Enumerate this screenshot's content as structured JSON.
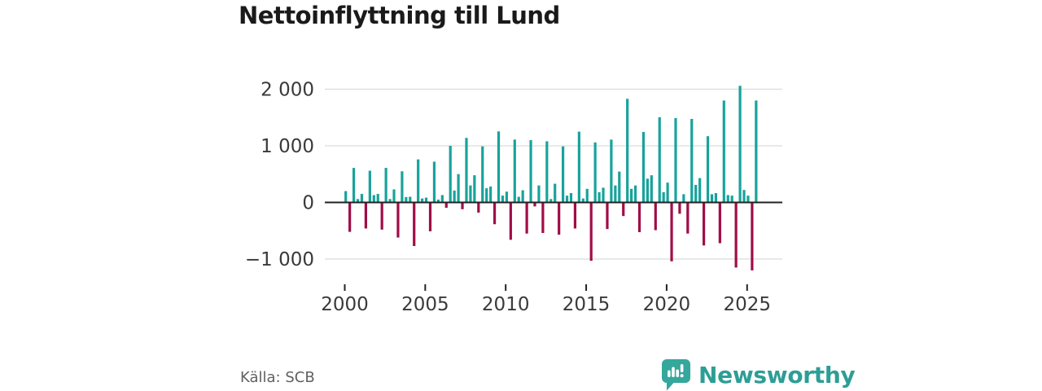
{
  "title": "Nettoinflyttning till Lund",
  "source": "Källa: SCB",
  "brand": {
    "name": "Newsworthy",
    "color": "#2d9e96",
    "badge_color": "#35a79c"
  },
  "colors": {
    "positive": "#18a39b",
    "negative": "#a00d46",
    "grid": "#dcdcdc",
    "axis": "#222222",
    "tick_label": "#3a3a3a"
  },
  "chart_data": {
    "type": "bar",
    "title": "Nettoinflyttning till Lund",
    "frequency": "quarterly",
    "start": {
      "year": 2000,
      "quarter": 1
    },
    "end": {
      "year": 2025,
      "quarter": 3
    },
    "xlabel": "",
    "ylabel": "",
    "grid": true,
    "legend": false,
    "ylim": [
      -1300,
      2280
    ],
    "y_ticks": [
      {
        "value": 2000,
        "label": "2 000"
      },
      {
        "value": 1000,
        "label": "1 000"
      },
      {
        "value": 0,
        "label": "0"
      },
      {
        "value": -1000,
        "label": "−1 000"
      }
    ],
    "x_ticks": [
      {
        "year": 2000,
        "label": "2000"
      },
      {
        "year": 2005,
        "label": "2005"
      },
      {
        "year": 2010,
        "label": "2010"
      },
      {
        "year": 2015,
        "label": "2015"
      },
      {
        "year": 2020,
        "label": "2020"
      },
      {
        "year": 2025,
        "label": "2025"
      }
    ],
    "values": [
      200,
      -520,
      610,
      60,
      150,
      -460,
      560,
      130,
      150,
      -480,
      610,
      60,
      230,
      -620,
      550,
      95,
      100,
      -770,
      760,
      70,
      85,
      -510,
      720,
      50,
      130,
      -95,
      1000,
      210,
      500,
      -120,
      1140,
      300,
      480,
      -180,
      990,
      250,
      280,
      -385,
      1255,
      120,
      190,
      -660,
      1110,
      100,
      215,
      -550,
      1100,
      -70,
      300,
      -540,
      1080,
      60,
      330,
      -570,
      990,
      120,
      165,
      -460,
      1250,
      70,
      240,
      -1030,
      1060,
      180,
      260,
      -470,
      1110,
      300,
      545,
      -240,
      1830,
      240,
      300,
      -525,
      1245,
      420,
      480,
      -490,
      1505,
      180,
      350,
      -1040,
      1490,
      -200,
      145,
      -550,
      1475,
      310,
      430,
      -760,
      1170,
      145,
      165,
      -720,
      1800,
      130,
      120,
      -1150,
      2060,
      220,
      120,
      -1200,
      1800
    ]
  }
}
